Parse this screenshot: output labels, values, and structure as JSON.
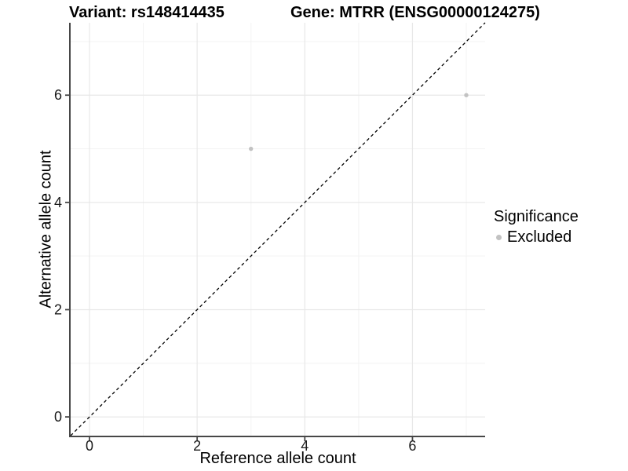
{
  "chart_data": {
    "type": "scatter",
    "title_left": "Variant: rs148414435",
    "title_right": "Gene: MTRR (ENSG00000124275)",
    "xlabel": "Reference allele count",
    "ylabel": "Alternative allele count",
    "xlim": [
      -0.35,
      7.35
    ],
    "ylim": [
      -0.35,
      7.35
    ],
    "x_major_ticks": [
      0,
      2,
      4,
      6
    ],
    "y_major_ticks": [
      0,
      2,
      4,
      6
    ],
    "x_minor_ticks": [
      1,
      3,
      5,
      7
    ],
    "y_minor_ticks": [
      1,
      3,
      5,
      7
    ],
    "grid": "major+minor",
    "series": [
      {
        "name": "Excluded",
        "color": "#c2c2c2",
        "points": [
          {
            "x": 3,
            "y": 5
          },
          {
            "x": 7,
            "y": 6
          }
        ]
      }
    ],
    "reference_line": {
      "type": "identity y=x",
      "style": "dashed",
      "color": "#000000"
    },
    "legend": {
      "title": "Significance",
      "position": "right",
      "items": [
        {
          "label": "Excluded",
          "color": "#c2c2c2"
        }
      ]
    },
    "colors": {
      "background": "#ffffff",
      "grid_major": "#e8e8e8",
      "grid_minor": "#f3f3f3",
      "axis_line": "#474747",
      "tick_label": "#1a1a1a"
    }
  }
}
